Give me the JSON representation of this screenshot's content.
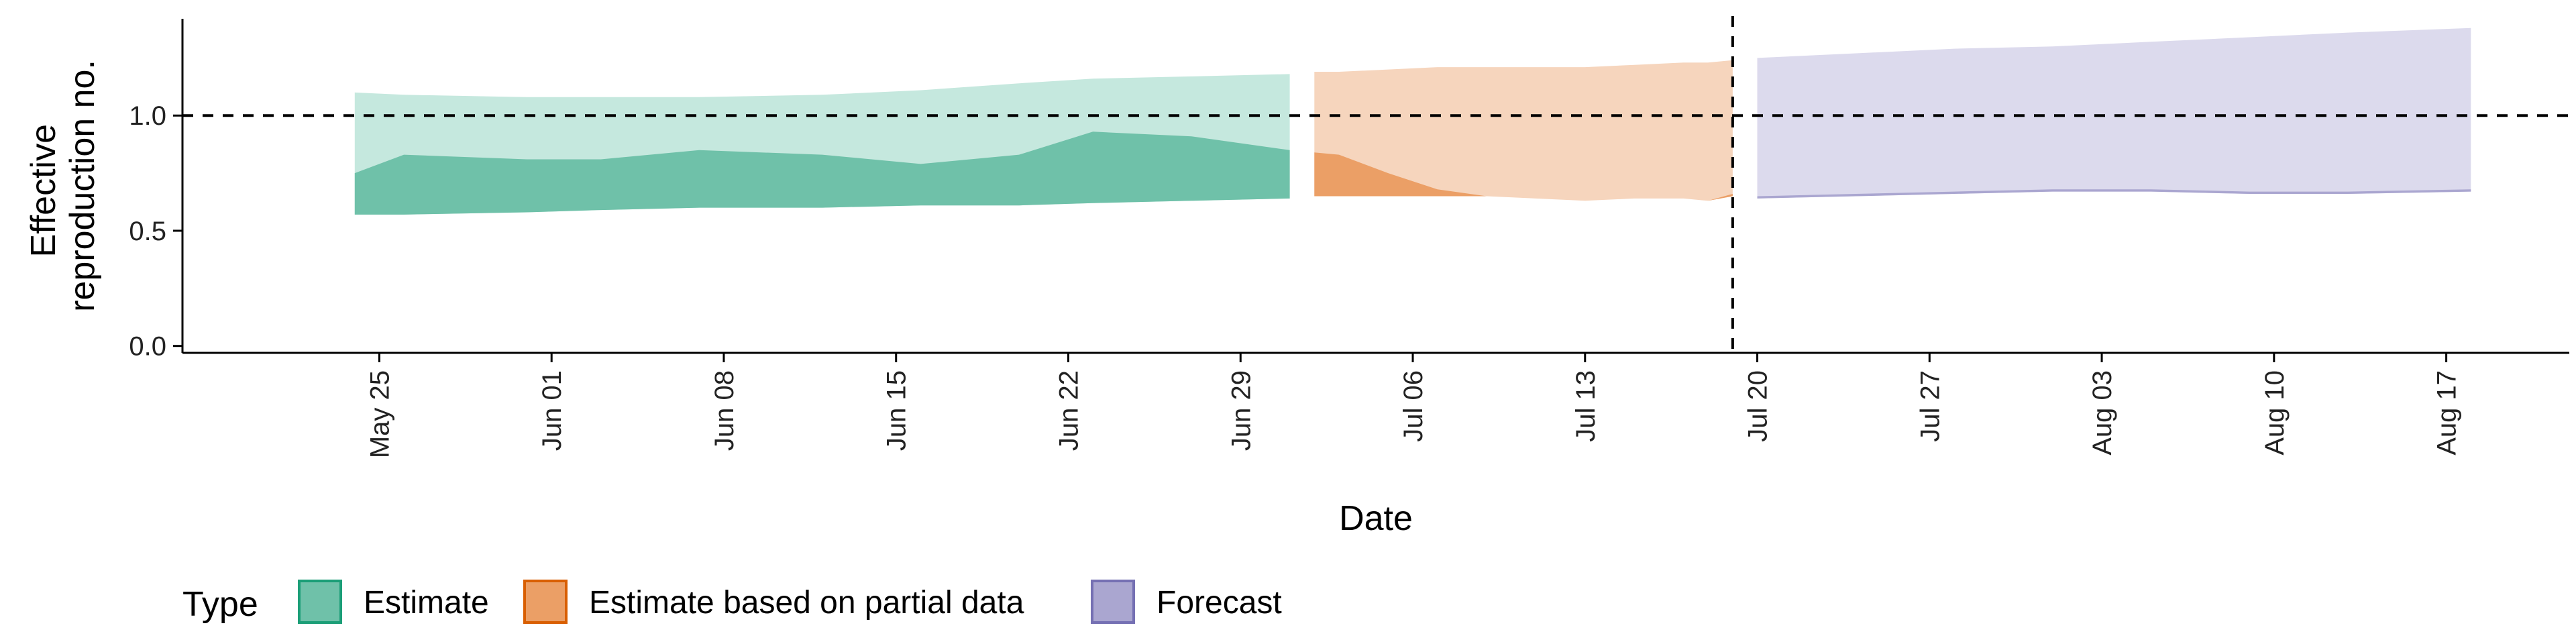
{
  "chart_data": {
    "type": "area",
    "title": "",
    "xlabel": "Date",
    "ylabel_lines": [
      "Effective",
      "reproduction no."
    ],
    "x_tick_labels": [
      "May 25",
      "Jun 01",
      "Jun 08",
      "Jun 15",
      "Jun 22",
      "Jun 29",
      "Jul 06",
      "Jul 13",
      "Jul 20",
      "Jul 27",
      "Aug 03",
      "Aug 10",
      "Aug 17"
    ],
    "x_tick_dates": [
      "2020-05-25",
      "2020-06-01",
      "2020-06-08",
      "2020-06-15",
      "2020-06-22",
      "2020-06-29",
      "2020-07-06",
      "2020-07-13",
      "2020-07-20",
      "2020-07-27",
      "2020-08-03",
      "2020-08-10",
      "2020-08-17"
    ],
    "xlim": [
      "2020-05-17",
      "2020-08-22"
    ],
    "y_ticks": [
      "0.0",
      "0.5",
      "1.0"
    ],
    "ylim": [
      -0.03,
      1.42
    ],
    "reference_line_y": 1.0,
    "forecast_start_date": "2020-07-19",
    "grid": false,
    "legend": {
      "title": "Type",
      "position": "bottom",
      "entries": [
        {
          "label": "Estimate",
          "fill": "#6fc1a9",
          "stroke": "#1b9e77"
        },
        {
          "label": "Estimate based on partial data",
          "fill": "#eb9f66",
          "stroke": "#d95f02"
        },
        {
          "label": "Forecast",
          "fill": "#aaa6d0",
          "stroke": "#7570b3"
        }
      ]
    },
    "series": [
      {
        "name": "Estimate",
        "color_outer": "#c5e8de",
        "color_inner": "#6fc1a9",
        "x": [
          "2020-05-24",
          "2020-05-26",
          "2020-05-31",
          "2020-06-03",
          "2020-06-07",
          "2020-06-12",
          "2020-06-16",
          "2020-06-20",
          "2020-06-23",
          "2020-06-27",
          "2020-07-01"
        ],
        "outer_lower": [
          0.57,
          0.57,
          0.58,
          0.59,
          0.6,
          0.6,
          0.61,
          0.61,
          0.62,
          0.63,
          0.64
        ],
        "outer_upper": [
          1.1,
          1.09,
          1.08,
          1.08,
          1.08,
          1.09,
          1.11,
          1.14,
          1.16,
          1.17,
          1.18
        ],
        "inner_lower": [
          0.57,
          0.57,
          0.58,
          0.59,
          0.6,
          0.6,
          0.61,
          0.61,
          0.62,
          0.63,
          0.64
        ],
        "inner_upper": [
          0.75,
          0.83,
          0.81,
          0.81,
          0.85,
          0.83,
          0.79,
          0.83,
          0.93,
          0.91,
          0.85
        ]
      },
      {
        "name": "Estimate based on partial data",
        "color_outer": "#f6d5bd",
        "color_inner": "#eb9f66",
        "x": [
          "2020-07-02",
          "2020-07-03",
          "2020-07-05",
          "2020-07-07",
          "2020-07-09",
          "2020-07-11",
          "2020-07-13",
          "2020-07-15",
          "2020-07-17",
          "2020-07-18",
          "2020-07-19"
        ],
        "outer_lower": [
          0.65,
          0.65,
          0.65,
          0.65,
          0.65,
          0.64,
          0.63,
          0.64,
          0.64,
          0.63,
          0.65
        ],
        "outer_upper": [
          1.19,
          1.19,
          1.2,
          1.21,
          1.21,
          1.21,
          1.21,
          1.22,
          1.23,
          1.23,
          1.24
        ],
        "inner_lower": [
          0.65,
          0.65,
          0.65,
          0.65,
          0.65,
          0.64,
          0.63,
          0.64,
          0.64,
          0.63,
          0.65
        ],
        "inner_upper": [
          0.84,
          0.83,
          0.75,
          0.68,
          0.65,
          0.64,
          0.63,
          0.64,
          0.64,
          0.63,
          0.66
        ]
      },
      {
        "name": "Forecast",
        "color_outer": "#dcdaed",
        "color_inner": "#aaa6d0",
        "x": [
          "2020-07-20",
          "2020-07-24",
          "2020-07-28",
          "2020-08-01",
          "2020-08-05",
          "2020-08-09",
          "2020-08-13",
          "2020-08-18"
        ],
        "outer_lower": [
          0.64,
          0.65,
          0.66,
          0.67,
          0.67,
          0.66,
          0.66,
          0.67
        ],
        "outer_upper": [
          1.25,
          1.27,
          1.29,
          1.3,
          1.32,
          1.34,
          1.36,
          1.38
        ],
        "inner_lower": [
          0.64,
          0.65,
          0.66,
          0.67,
          0.67,
          0.66,
          0.66,
          0.67
        ],
        "inner_upper": [
          0.65,
          0.66,
          0.67,
          0.68,
          0.68,
          0.67,
          0.67,
          0.68
        ]
      }
    ]
  }
}
